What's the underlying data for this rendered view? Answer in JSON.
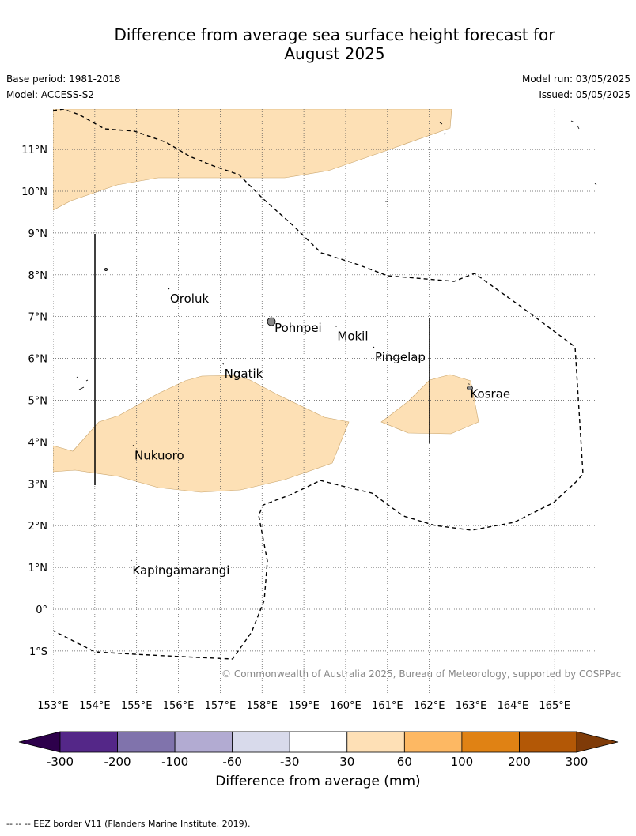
{
  "title": {
    "line1": "Difference from average sea surface height forecast for",
    "line2": "August 2025"
  },
  "meta": {
    "base_period": "Base period: 1981-2018",
    "model": "Model: ACCESS-S2",
    "model_run": "Model run: 03/05/2025",
    "issued": "Issued: 05/05/2025"
  },
  "map": {
    "lon_range": [
      153,
      166
    ],
    "lat_range": [
      -2,
      12
    ],
    "lon_ticks": [
      "153°E",
      "154°E",
      "155°E",
      "156°E",
      "157°E",
      "158°E",
      "159°E",
      "160°E",
      "161°E",
      "162°E",
      "163°E",
      "164°E",
      "165°E"
    ],
    "lat_ticks": [
      "1°S",
      "0°",
      "1°N",
      "2°N",
      "3°N",
      "4°N",
      "5°N",
      "6°N",
      "7°N",
      "8°N",
      "9°N",
      "10°N",
      "11°N"
    ],
    "grid": true,
    "fill_color": "#fde0b5",
    "places": [
      {
        "name": "Oroluk",
        "lon": 155.8,
        "lat": 7.6
      },
      {
        "name": "Pohnpei",
        "lon": 158.3,
        "lat": 6.9
      },
      {
        "name": "Mokil",
        "lon": 159.8,
        "lat": 6.7
      },
      {
        "name": "Pingelap",
        "lon": 160.7,
        "lat": 6.2
      },
      {
        "name": "Ngatik",
        "lon": 157.1,
        "lat": 5.8
      },
      {
        "name": "Kosrae",
        "lon": 162.98,
        "lat": 5.32
      },
      {
        "name": "Nukuoro",
        "lon": 154.95,
        "lat": 3.85
      },
      {
        "name": "Kapingamarangi",
        "lon": 154.9,
        "lat": 1.1
      }
    ],
    "credit": "© Commonwealth of Australia 2025, Bureau of Meteorology, supported by COSPPac"
  },
  "colorbar": {
    "tick_labels": [
      "-300",
      "-200",
      "-100",
      "-60",
      "-30",
      "30",
      "60",
      "100",
      "200",
      "300"
    ],
    "colors": [
      "#542788",
      "#8073ac",
      "#b2abd2",
      "#d8daeb",
      "#ffffff",
      "#fee0b6",
      "#fdb863",
      "#e08214",
      "#b35806"
    ],
    "under_color": "#2d004b",
    "over_color": "#7f3b08",
    "label": "Difference from average (mm)"
  },
  "footnote": "--  --  -- EEZ border V11 (Flanders Marine Institute, 2019)."
}
